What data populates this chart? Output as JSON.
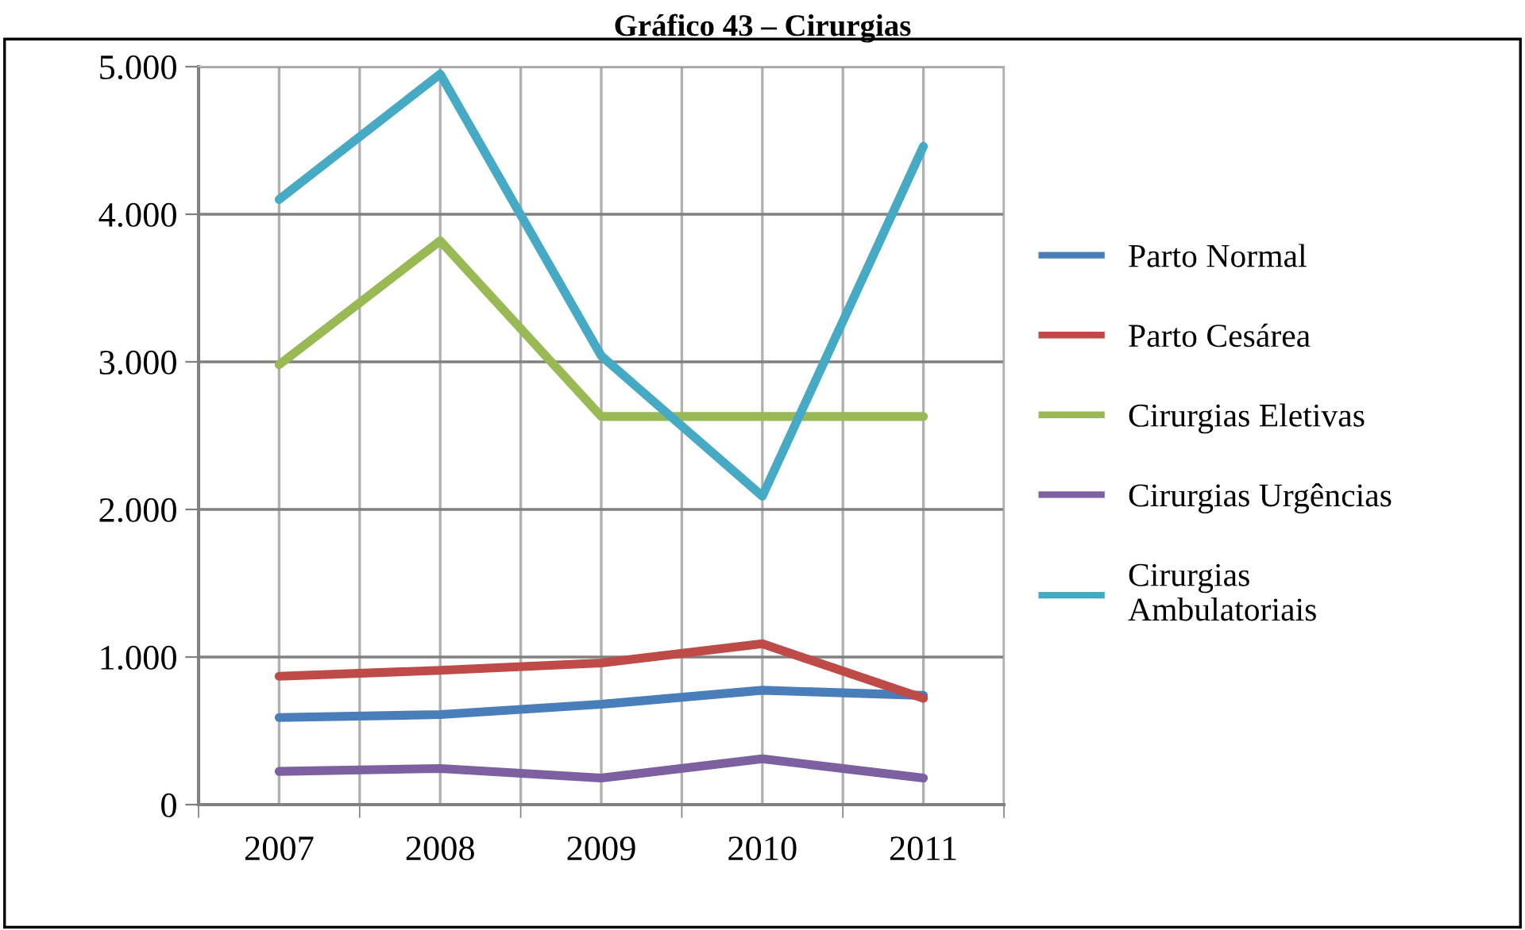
{
  "chart_data": {
    "type": "line",
    "title": "Gráfico 43 – Cirurgias",
    "categories": [
      "2007",
      "2008",
      "2009",
      "2010",
      "2011"
    ],
    "series": [
      {
        "name": "Parto Normal",
        "color": "#4a7ebb",
        "values": [
          590,
          610,
          680,
          775,
          740
        ]
      },
      {
        "name": "Parto Cesárea",
        "color": "#be4b48",
        "values": [
          870,
          910,
          960,
          1090,
          720
        ]
      },
      {
        "name": "Cirurgias Eletivas",
        "color": "#98b954",
        "values": [
          2980,
          3820,
          2630,
          2630,
          2630
        ]
      },
      {
        "name": "Cirurgias Urgências",
        "color": "#7d60a0",
        "values": [
          225,
          245,
          180,
          310,
          180
        ]
      },
      {
        "name": "Cirurgias\nAmbulatoriais",
        "color": "#46aac5",
        "values": [
          4100,
          4950,
          3040,
          2090,
          4460
        ]
      }
    ],
    "ylim": [
      0,
      5000
    ],
    "yticks": [
      {
        "value": 0,
        "label": "0"
      },
      {
        "value": 1000,
        "label": "1.000"
      },
      {
        "value": 2000,
        "label": "2.000"
      },
      {
        "value": 3000,
        "label": "3.000"
      },
      {
        "value": 4000,
        "label": "4.000"
      },
      {
        "value": 5000,
        "label": "5.000"
      }
    ],
    "grid": true,
    "legend": "right",
    "marker": "none",
    "line_style": "solid"
  }
}
